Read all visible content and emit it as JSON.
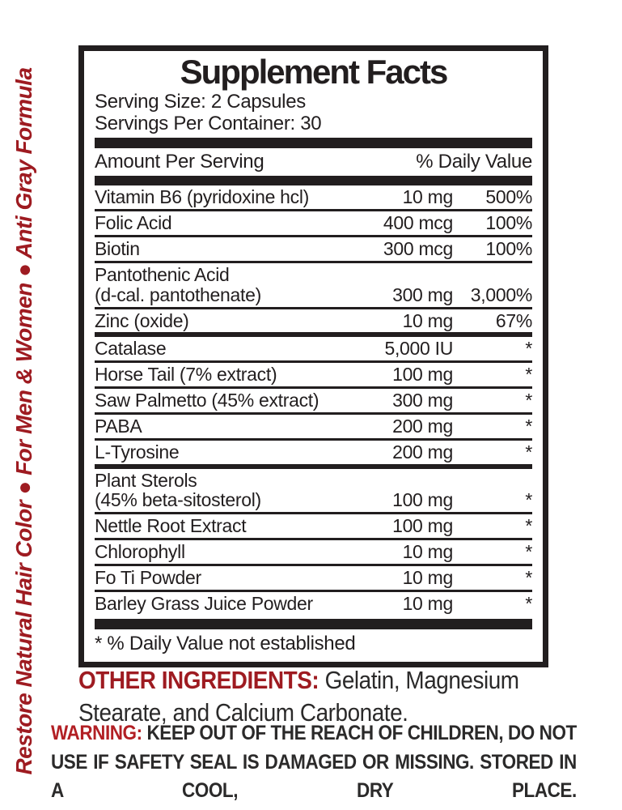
{
  "side_banner": {
    "text": "Restore Natural Hair Color ● For Men & Women ● Anti Gray Formula",
    "color": "#9e1b21"
  },
  "panel": {
    "title": "Supplement Facts",
    "serving_size": "Serving Size: 2 Capsules",
    "servings_per_container": "Servings Per Container: 30",
    "columns": {
      "left": "Amount Per Serving",
      "right": "% Daily Value"
    },
    "rows": [
      {
        "name": "Vitamin B6 (pyridoxine hcl)",
        "amount": "10 mg",
        "dv": "500%"
      },
      {
        "name": "Folic Acid",
        "amount": "400 mcg",
        "dv": "100%"
      },
      {
        "name": "Biotin",
        "amount": "300 mcg",
        "dv": "100%"
      },
      {
        "name": "Pantothenic Acid",
        "name2": "(d-cal. pantothenate)",
        "amount": "300 mg",
        "dv": "3,000%"
      },
      {
        "name": "Zinc (oxide)",
        "amount": "10 mg",
        "dv": "67%",
        "divider": "medium"
      },
      {
        "name": "Catalase",
        "amount": "5,000 IU",
        "dv": "*"
      },
      {
        "name": "Horse Tail (7% extract)",
        "amount": "100 mg",
        "dv": "*"
      },
      {
        "name": "Saw Palmetto (45% extract)",
        "amount": "300 mg",
        "dv": "*"
      },
      {
        "name": "PABA",
        "amount": "200 mg",
        "dv": "*"
      },
      {
        "name": "L-Tyrosine",
        "amount": "200 mg",
        "dv": "*",
        "divider": "medium"
      },
      {
        "name": "Plant Sterols",
        "name2": "(45% beta-sitosterol)",
        "amount": "100 mg",
        "dv": "*"
      },
      {
        "name": "Nettle Root Extract",
        "amount": "100 mg",
        "dv": "*"
      },
      {
        "name": "Chlorophyll",
        "amount": "10 mg",
        "dv": "*"
      },
      {
        "name": "Fo Ti Powder",
        "amount": "10 mg",
        "dv": "*"
      },
      {
        "name": "Barley Grass Juice Powder",
        "amount": "10 mg",
        "dv": "*",
        "divider": "none"
      }
    ],
    "footnote": "* % Daily Value not established"
  },
  "other_ingredients": {
    "label": "OTHER INGREDIENTS",
    "separator": ": ",
    "text": "Gelatin, Magnesium Stearate, and Calcium Carbonate."
  },
  "warning": {
    "label": "WARNING:",
    "text": " KEEP OUT OF THE REACH OF CHILDREN, DO NOT USE IF SAFETY SEAL IS DAMAGED OR MISSING. STORED IN A COOL, DRY PLACE."
  },
  "colors": {
    "ink": "#221e1f",
    "banner_red": "#9e1b21",
    "warning_red": "#b21f24"
  }
}
